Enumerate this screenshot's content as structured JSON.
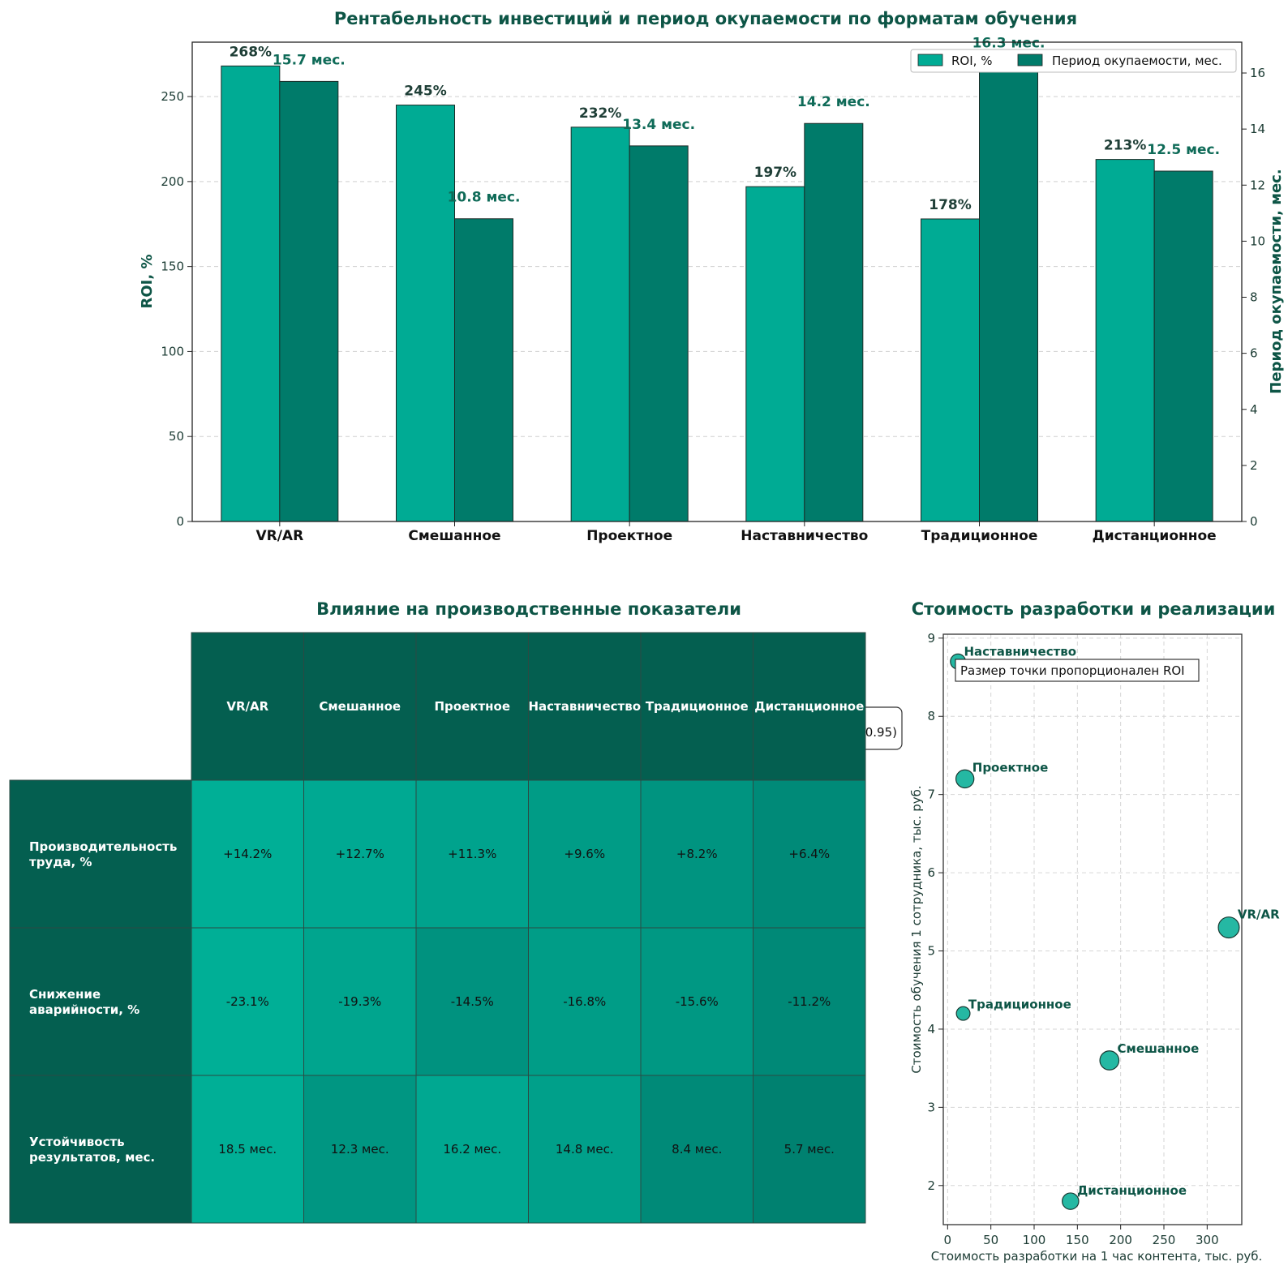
{
  "chart_data": [
    {
      "type": "bar",
      "title": "Рентабельность инвестиций и период окупаемости по форматам обучения",
      "categories": [
        "VR/AR",
        "Смешанное",
        "Проектное",
        "Наставничество",
        "Традиционное",
        "Дистанционное"
      ],
      "series": [
        {
          "name": "ROI, %",
          "axis": "left",
          "values": [
            268,
            245,
            232,
            197,
            178,
            213
          ],
          "labels": [
            "268%",
            "245%",
            "232%",
            "197%",
            "178%",
            "213%"
          ],
          "color": "#00ab94"
        },
        {
          "name": "Период окупаемости, мес.",
          "axis": "right",
          "values": [
            15.7,
            10.8,
            13.4,
            14.2,
            16.3,
            12.5
          ],
          "labels": [
            "15.7 мес.",
            "10.8 мес.",
            "13.4 мес.",
            "14.2 мес.",
            "16.3 мес.",
            "12.5 мес."
          ],
          "color": "#007b6a"
        }
      ],
      "ylabel": "ROI, %",
      "ylabel_right": "Период окупаемости, мес.",
      "ylim": [
        0,
        282
      ],
      "ylim_right": [
        0,
        17.1
      ],
      "yticks": [
        0,
        50,
        100,
        150,
        200,
        250
      ],
      "yticks_right": [
        0,
        2,
        4,
        6,
        8,
        10,
        12,
        14,
        16
      ],
      "grid": true,
      "legend": "top-right"
    },
    {
      "type": "table",
      "title": "Влияние на производственные показатели",
      "columns": [
        "VR/AR",
        "Смешанное",
        "Проектное",
        "Наставничество",
        "Традиционное",
        "Дистанционное"
      ],
      "rows": [
        {
          "label": "Производительность\nтруда, %",
          "values": [
            "+14.2%",
            "+12.7%",
            "+11.3%",
            "+9.6%",
            "+8.2%",
            "+6.4%"
          ],
          "intensity": [
            0.95,
            0.87,
            0.78,
            0.66,
            0.55,
            0.4
          ]
        },
        {
          "label": "Снижение\nаварийности, %",
          "values": [
            "-23.1%",
            "-19.3%",
            "-14.5%",
            "-16.8%",
            "-15.6%",
            "-11.2%"
          ],
          "intensity": [
            0.95,
            0.8,
            0.52,
            0.68,
            0.6,
            0.38
          ]
        },
        {
          "label": "Устойчивость\nрезультатов, мес.",
          "values": [
            "18.5 мес.",
            "12.3 мес.",
            "16.2 мес.",
            "14.8 мес.",
            "8.4 мес.",
            "5.7 мес."
          ],
          "intensity": [
            0.95,
            0.58,
            0.85,
            0.72,
            0.4,
            0.25
          ]
        }
      ],
      "fragment": "0.95)"
    },
    {
      "type": "scatter",
      "title": "Стоимость разработки и реализации",
      "xlabel": "Стоимость разработки на 1 час контента, тыс. руб.",
      "ylabel": "Стоимость обучения 1 сотрудника, тыс. руб.",
      "xlim": [
        -5,
        340
      ],
      "ylim": [
        1.5,
        9.05
      ],
      "xticks": [
        0,
        50,
        100,
        150,
        200,
        250,
        300
      ],
      "yticks": [
        2,
        3,
        4,
        5,
        6,
        7,
        8,
        9
      ],
      "points": [
        {
          "name": "Наставничество",
          "x": 12,
          "y": 8.7,
          "roi": 197
        },
        {
          "name": "Проектное",
          "x": 20,
          "y": 7.2,
          "roi": 232
        },
        {
          "name": "VR/AR",
          "x": 325,
          "y": 5.3,
          "roi": 268
        },
        {
          "name": "Традиционное",
          "x": 18,
          "y": 4.2,
          "roi": 178
        },
        {
          "name": "Смешанное",
          "x": 187,
          "y": 3.6,
          "roi": 245
        },
        {
          "name": "Дистанционное",
          "x": 142,
          "y": 1.8,
          "roi": 213
        }
      ],
      "note": "Размер точки пропорционален ROI"
    }
  ]
}
